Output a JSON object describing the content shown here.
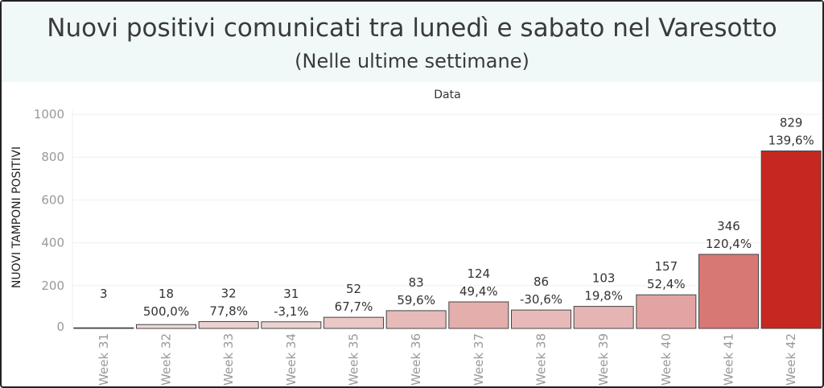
{
  "chart_data": {
    "type": "bar",
    "title": "Nuovi positivi comunicati tra lunedì e sabato nel Varesotto",
    "subtitle": "(Nelle ultime settimane)",
    "header_label": "Data",
    "ylabel": "NUOVI TAMPONI POSITIVI",
    "categories": [
      "Week 31",
      "Week 32",
      "Week 33",
      "Week 34",
      "Week 35",
      "Week 36",
      "Week 37",
      "Week 38",
      "Week 39",
      "Week 40",
      "Week 41",
      "Week 42"
    ],
    "values": [
      3,
      18,
      32,
      31,
      52,
      83,
      124,
      86,
      103,
      157,
      346,
      829
    ],
    "change_labels": [
      "",
      "500,0%",
      "77,8%",
      "-3,1%",
      "67,7%",
      "59,6%",
      "49,4%",
      "-30,6%",
      "19,8%",
      "52,4%",
      "120,4%",
      "139,6%"
    ],
    "ylim": [
      0,
      1000
    ],
    "yticks": [
      0,
      200,
      400,
      600,
      800,
      1000
    ],
    "grid": true,
    "color_scale": {
      "low": "#f2eded",
      "high": "#c62821"
    }
  },
  "colors": {
    "title_band": "#f0f8f8",
    "text": "#333333",
    "tick": "#999999",
    "grid": "#efefef",
    "border": "#222222"
  }
}
